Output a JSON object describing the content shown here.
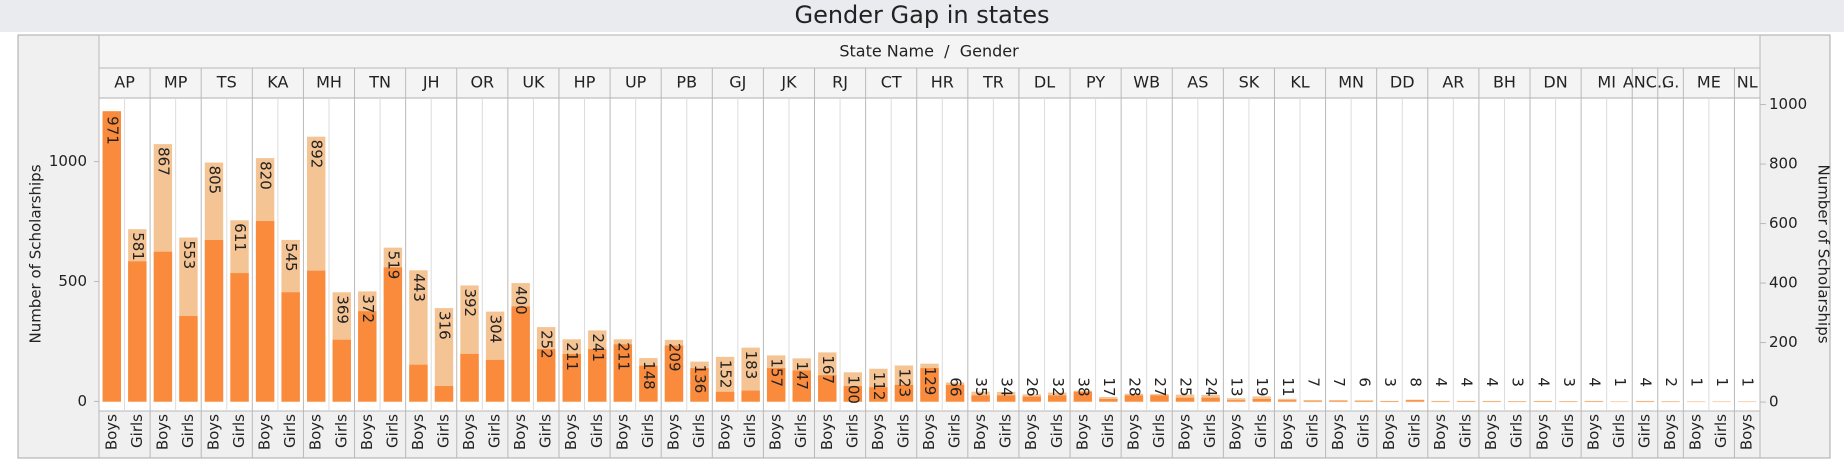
{
  "chart_data": {
    "type": "bar",
    "title": "Gender Gap in states",
    "column_header": "State Name  /  Gender",
    "ylabel": "Number of Scholarships",
    "y2label": "Number of Scholarships",
    "ylim": [
      -40,
      1265
    ],
    "yticks": [
      0,
      500,
      1000
    ],
    "y2lim": [
      -30,
      1022
    ],
    "y2ticks": [
      0,
      200,
      400,
      600,
      800,
      1000
    ],
    "states": [
      {
        "name": "AP",
        "genders": [
          "Boys",
          "Girls"
        ]
      },
      {
        "name": "MP",
        "genders": [
          "Boys",
          "Girls"
        ]
      },
      {
        "name": "TS",
        "genders": [
          "Boys",
          "Girls"
        ]
      },
      {
        "name": "KA",
        "genders": [
          "Boys",
          "Girls"
        ]
      },
      {
        "name": "MH",
        "genders": [
          "Boys",
          "Girls"
        ]
      },
      {
        "name": "TN",
        "genders": [
          "Boys",
          "Girls"
        ]
      },
      {
        "name": "JH",
        "genders": [
          "Boys",
          "Girls"
        ]
      },
      {
        "name": "OR",
        "genders": [
          "Boys",
          "Girls"
        ]
      },
      {
        "name": "UK",
        "genders": [
          "Boys",
          "Girls"
        ]
      },
      {
        "name": "HP",
        "genders": [
          "Boys",
          "Girls"
        ]
      },
      {
        "name": "UP",
        "genders": [
          "Boys",
          "Girls"
        ]
      },
      {
        "name": "PB",
        "genders": [
          "Boys",
          "Girls"
        ]
      },
      {
        "name": "GJ",
        "genders": [
          "Boys",
          "Girls"
        ]
      },
      {
        "name": "JK",
        "genders": [
          "Boys",
          "Girls"
        ]
      },
      {
        "name": "RJ",
        "genders": [
          "Boys",
          "Girls"
        ]
      },
      {
        "name": "CT",
        "genders": [
          "Boys",
          "Girls"
        ]
      },
      {
        "name": "HR",
        "genders": [
          "Boys",
          "Girls"
        ]
      },
      {
        "name": "TR",
        "genders": [
          "Boys",
          "Girls"
        ]
      },
      {
        "name": "DL",
        "genders": [
          "Boys",
          "Girls"
        ]
      },
      {
        "name": "PY",
        "genders": [
          "Boys",
          "Girls"
        ]
      },
      {
        "name": "WB",
        "genders": [
          "Boys",
          "Girls"
        ]
      },
      {
        "name": "AS",
        "genders": [
          "Boys",
          "Girls"
        ]
      },
      {
        "name": "SK",
        "genders": [
          "Boys",
          "Girls"
        ]
      },
      {
        "name": "KL",
        "genders": [
          "Boys",
          "Girls"
        ]
      },
      {
        "name": "MN",
        "genders": [
          "Boys",
          "Girls"
        ]
      },
      {
        "name": "DD",
        "genders": [
          "Boys",
          "Girls"
        ]
      },
      {
        "name": "AR",
        "genders": [
          "Boys",
          "Girls"
        ]
      },
      {
        "name": "BH",
        "genders": [
          "Boys",
          "Girls"
        ]
      },
      {
        "name": "DN",
        "genders": [
          "Boys",
          "Girls"
        ]
      },
      {
        "name": "MI",
        "genders": [
          "Boys",
          "Girls"
        ]
      },
      {
        "name": "ANC..",
        "genders": [
          "Girls"
        ]
      },
      {
        "name": "G.",
        "genders": [
          "Boys"
        ]
      },
      {
        "name": "ME",
        "genders": [
          "Boys",
          "Girls"
        ]
      },
      {
        "name": "NL",
        "genders": [
          "Boys"
        ]
      }
    ],
    "series": [
      {
        "color": "#f5c494",
        "axis": "y2",
        "labels": true,
        "values": [
          971,
          581,
          867,
          553,
          805,
          611,
          820,
          545,
          892,
          369,
          372,
          519,
          443,
          316,
          392,
          304,
          400,
          252,
          211,
          241,
          211,
          148,
          209,
          136,
          152,
          183,
          157,
          147,
          167,
          100,
          112,
          123,
          129,
          66,
          35,
          34,
          26,
          32,
          38,
          17,
          28,
          27,
          25,
          24,
          13,
          19,
          11,
          7,
          7,
          6,
          3,
          8,
          4,
          4,
          4,
          3,
          4,
          3,
          4,
          1,
          4,
          2,
          1,
          1,
          1
        ]
      },
      {
        "color": "#fb8b3c",
        "axis": "y",
        "values": [
          1210,
          584,
          624,
          356,
          673,
          535,
          752,
          455,
          545,
          257,
          376,
          559,
          153,
          64,
          198,
          173,
          396,
          218,
          198,
          218,
          238,
          149,
          233,
          139,
          40,
          45,
          139,
          129,
          109,
          64,
          59,
          69,
          139,
          69,
          25,
          25,
          20,
          25,
          40,
          10,
          25,
          25,
          15,
          15,
          5,
          10,
          5,
          2,
          2,
          2,
          2,
          5,
          1,
          1,
          1,
          1,
          1,
          1,
          1,
          1,
          1,
          1,
          1,
          1,
          1
        ]
      }
    ]
  }
}
